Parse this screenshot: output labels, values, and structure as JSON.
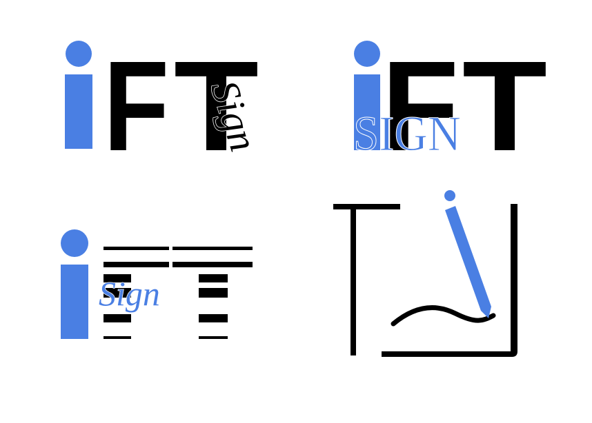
{
  "logos": [
    {
      "letters": [
        "F",
        "T"
      ],
      "word": "Sign"
    },
    {
      "letters": [
        "F",
        "T"
      ],
      "word": "SIGN"
    },
    {
      "word": "Sign"
    }
  ]
}
